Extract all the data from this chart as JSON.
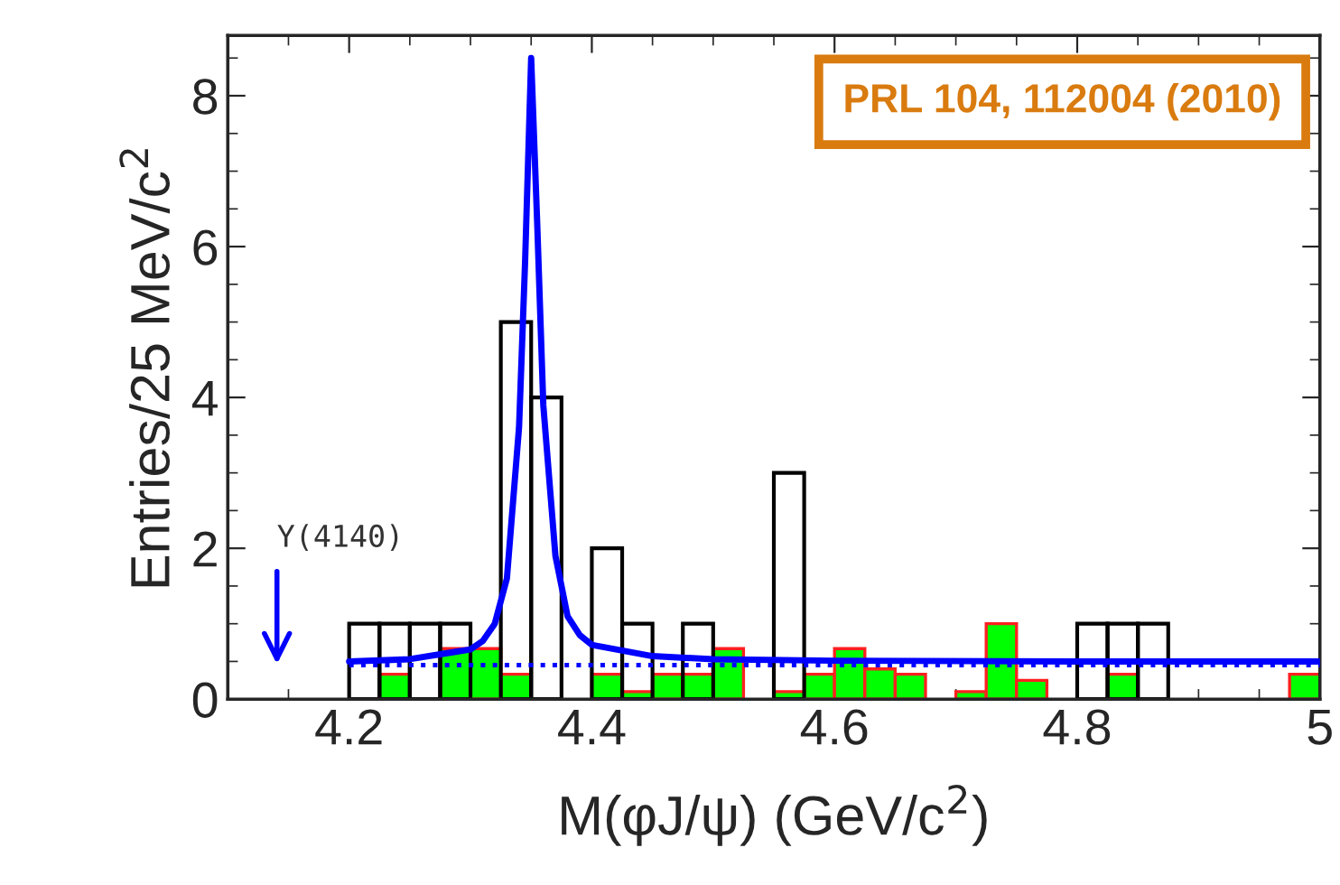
{
  "chart_data": {
    "type": "histogram",
    "xlabel": "M(φJ/ψ) (GeV/c$^{2}$)",
    "ylabel": "Entries/25 MeV/c$^{2}$",
    "bins": [
      4.1,
      4.125,
      4.15,
      4.175,
      4.2,
      4.225,
      4.25,
      4.275,
      4.3,
      4.325,
      4.35,
      4.375,
      4.4,
      4.425,
      4.45,
      4.475,
      4.5,
      4.525,
      4.55,
      4.575,
      4.6,
      4.625,
      4.65,
      4.675,
      4.7,
      4.725,
      4.75,
      4.775,
      4.8,
      4.825,
      4.85,
      4.875,
      4.9,
      4.925,
      4.95,
      4.975,
      5.0
    ],
    "series": [
      {
        "color": "#000000",
        "values": [
          0,
          0,
          0,
          0,
          1,
          1,
          1,
          1,
          0,
          5,
          4,
          0,
          2,
          1,
          0,
          1,
          0,
          0,
          3,
          0,
          0,
          0,
          0,
          0,
          0,
          0,
          0,
          0,
          1,
          1,
          1,
          0,
          0,
          0,
          0,
          0
        ]
      },
      {
        "color": "#00ff00",
        "values": [
          0,
          0,
          0,
          0,
          0,
          0.33,
          0,
          0.67,
          0.67,
          0.33,
          0,
          0,
          0.33,
          0.1,
          0.33,
          0.33,
          0.67,
          0,
          0.1,
          0.33,
          0.67,
          0.4,
          0.33,
          0,
          0.1,
          1,
          0.25,
          0,
          0,
          0.33,
          0,
          0,
          0,
          0,
          0,
          0.33
        ]
      },
      {
        "type": "line",
        "color": "#0000ff",
        "line_style": "solid",
        "x": [
          4.2,
          4.25,
          4.3,
          4.31,
          4.32,
          4.33,
          4.34,
          4.345,
          4.35,
          4.355,
          4.36,
          4.37,
          4.38,
          4.39,
          4.4,
          4.45,
          4.5,
          4.6,
          4.8,
          5.0
        ],
        "values": [
          0.5,
          0.53,
          0.66,
          0.77,
          1.0,
          1.6,
          3.6,
          5.8,
          8.5,
          6.3,
          3.9,
          1.9,
          1.1,
          0.85,
          0.72,
          0.57,
          0.53,
          0.51,
          0.5,
          0.5
        ]
      },
      {
        "type": "line",
        "color": "#0000ff",
        "line_style": "dotted",
        "x": [
          4.2,
          5.0
        ],
        "values": [
          0.45,
          0.45
        ]
      }
    ],
    "xlim": [
      4.1,
      5.0
    ],
    "ylim": [
      0,
      8.8
    ],
    "xticks": [
      4.2,
      4.4,
      4.6,
      4.8,
      5
    ],
    "yticks": [
      0,
      2,
      4,
      6,
      8
    ],
    "grid": false,
    "annotations": [
      "Y(4140)",
      "PRL 104, 112004 (2010)"
    ]
  }
}
